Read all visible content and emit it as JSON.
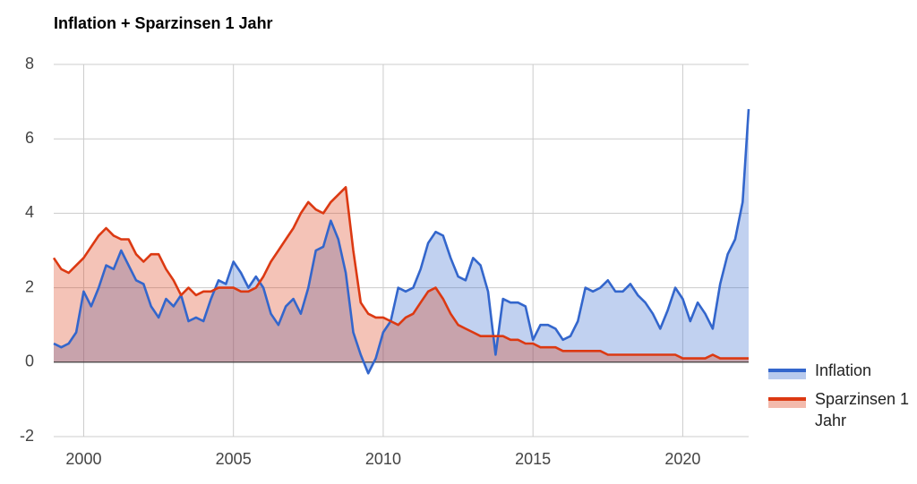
{
  "chart_data": {
    "type": "area",
    "title": "Inflation + Sparzinsen 1 Jahr",
    "x": [
      1999,
      1999.25,
      1999.5,
      1999.75,
      2000,
      2000.25,
      2000.5,
      2000.75,
      2001,
      2001.25,
      2001.5,
      2001.75,
      2002,
      2002.25,
      2002.5,
      2002.75,
      2003,
      2003.25,
      2003.5,
      2003.75,
      2004,
      2004.25,
      2004.5,
      2004.75,
      2005,
      2005.25,
      2005.5,
      2005.75,
      2006,
      2006.25,
      2006.5,
      2006.75,
      2007,
      2007.25,
      2007.5,
      2007.75,
      2008,
      2008.25,
      2008.5,
      2008.75,
      2009,
      2009.25,
      2009.5,
      2009.75,
      2010,
      2010.25,
      2010.5,
      2010.75,
      2011,
      2011.25,
      2011.5,
      2011.75,
      2012,
      2012.25,
      2012.5,
      2012.75,
      2013,
      2013.25,
      2013.5,
      2013.75,
      2014,
      2014.25,
      2014.5,
      2014.75,
      2015,
      2015.25,
      2015.5,
      2015.75,
      2016,
      2016.25,
      2016.5,
      2016.75,
      2017,
      2017.25,
      2017.5,
      2017.75,
      2018,
      2018.25,
      2018.5,
      2018.75,
      2019,
      2019.25,
      2019.5,
      2019.75,
      2020,
      2020.25,
      2020.5,
      2020.75,
      2021,
      2021.25,
      2021.5,
      2021.75,
      2022,
      2022.2
    ],
    "series": [
      {
        "name": "Inflation",
        "color": "#3366cc",
        "values": [
          0.5,
          0.4,
          0.5,
          0.8,
          1.9,
          1.5,
          2.0,
          2.6,
          2.5,
          3.0,
          2.6,
          2.2,
          2.1,
          1.5,
          1.2,
          1.7,
          1.5,
          1.8,
          1.1,
          1.2,
          1.1,
          1.7,
          2.2,
          2.1,
          2.7,
          2.4,
          2.0,
          2.3,
          2.0,
          1.3,
          1.0,
          1.5,
          1.7,
          1.3,
          2.0,
          3.0,
          3.1,
          3.8,
          3.3,
          2.4,
          0.8,
          0.2,
          -0.3,
          0.1,
          0.8,
          1.1,
          2.0,
          1.9,
          2.0,
          2.5,
          3.2,
          3.5,
          3.4,
          2.8,
          2.3,
          2.2,
          2.8,
          2.6,
          1.9,
          0.2,
          1.7,
          1.6,
          1.6,
          1.5,
          0.6,
          1.0,
          1.0,
          0.9,
          0.6,
          0.7,
          1.1,
          2.0,
          1.9,
          2.0,
          2.2,
          1.9,
          1.9,
          2.1,
          1.8,
          1.6,
          1.3,
          0.9,
          1.4,
          2.0,
          1.7,
          1.1,
          1.6,
          1.3,
          0.9,
          2.1,
          2.9,
          3.3,
          4.3,
          6.8
        ]
      },
      {
        "name": "Sparzinsen 1 Jahr",
        "color": "#dc3912",
        "values": [
          2.8,
          2.5,
          2.4,
          2.6,
          2.8,
          3.1,
          3.4,
          3.6,
          3.4,
          3.3,
          3.3,
          2.9,
          2.7,
          2.9,
          2.9,
          2.5,
          2.2,
          1.8,
          2.0,
          1.8,
          1.9,
          1.9,
          2.0,
          2.0,
          2.0,
          1.9,
          1.9,
          2.0,
          2.3,
          2.7,
          3.0,
          3.3,
          3.6,
          4.0,
          4.3,
          4.1,
          4.0,
          4.3,
          4.5,
          4.7,
          3.0,
          1.6,
          1.3,
          1.2,
          1.2,
          1.1,
          1.0,
          1.2,
          1.3,
          1.6,
          1.9,
          2.0,
          1.7,
          1.3,
          1.0,
          0.9,
          0.8,
          0.7,
          0.7,
          0.7,
          0.7,
          0.6,
          0.6,
          0.5,
          0.5,
          0.4,
          0.4,
          0.4,
          0.3,
          0.3,
          0.3,
          0.3,
          0.3,
          0.3,
          0.2,
          0.2,
          0.2,
          0.2,
          0.2,
          0.2,
          0.2,
          0.2,
          0.2,
          0.2,
          0.1,
          0.1,
          0.1,
          0.1,
          0.2,
          0.1,
          0.1,
          0.1,
          0.1,
          0.1
        ]
      }
    ],
    "xlim": [
      1999,
      2022.2
    ],
    "xticks": [
      2000,
      2005,
      2010,
      2015,
      2020
    ],
    "ylim": [
      -2,
      8
    ],
    "yticks": [
      -2,
      0,
      2,
      4,
      6,
      8
    ],
    "grid": true,
    "legend": "right"
  }
}
